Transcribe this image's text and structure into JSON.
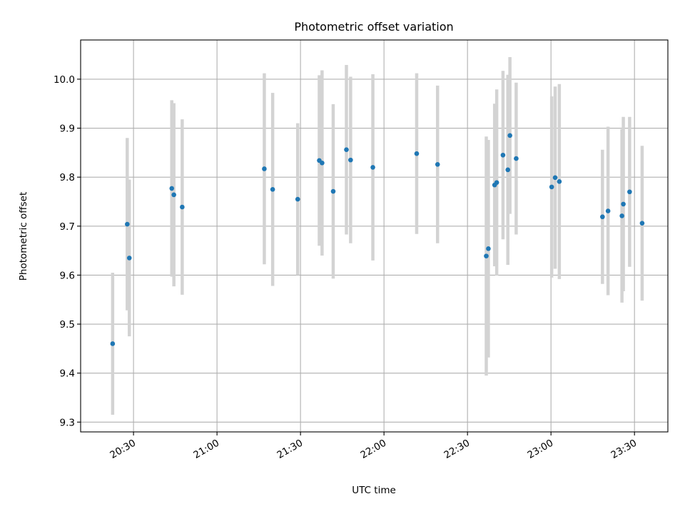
{
  "chart_data": {
    "type": "scatter",
    "title": "Photometric offset variation",
    "xlabel": "UTC time",
    "ylabel": "Photometric offset",
    "grid": true,
    "xlim": [
      "20:11",
      "23:42"
    ],
    "ylim": [
      9.28,
      10.08
    ],
    "x_ticks": [
      "20:30",
      "21:00",
      "21:30",
      "22:00",
      "22:30",
      "23:00",
      "23:30"
    ],
    "y_ticks": [
      "9.3",
      "9.4",
      "9.5",
      "9.6",
      "9.7",
      "9.8",
      "9.9",
      "10.0"
    ],
    "series": [
      {
        "marker_color": "#1f77b4",
        "errorbar_color": "#d3d3d3",
        "points": [
          {
            "x": "20:22:30",
            "y": 9.46,
            "ylo": 9.315,
            "yhi": 9.605
          },
          {
            "x": "20:27:45",
            "y": 9.704,
            "ylo": 9.528,
            "yhi": 9.88
          },
          {
            "x": "20:28:30",
            "y": 9.635,
            "ylo": 9.475,
            "yhi": 9.795
          },
          {
            "x": "20:43:45",
            "y": 9.777,
            "ylo": 9.597,
            "yhi": 9.957
          },
          {
            "x": "20:44:30",
            "y": 9.764,
            "ylo": 9.577,
            "yhi": 9.951
          },
          {
            "x": "20:47:30",
            "y": 9.739,
            "ylo": 9.56,
            "yhi": 9.918
          },
          {
            "x": "21:17:00",
            "y": 9.817,
            "ylo": 9.622,
            "yhi": 10.012
          },
          {
            "x": "21:20:00",
            "y": 9.775,
            "ylo": 9.578,
            "yhi": 9.972
          },
          {
            "x": "21:29:00",
            "y": 9.755,
            "ylo": 9.6,
            "yhi": 9.91
          },
          {
            "x": "21:36:45",
            "y": 9.834,
            "ylo": 9.66,
            "yhi": 10.008
          },
          {
            "x": "21:37:45",
            "y": 9.829,
            "ylo": 9.64,
            "yhi": 10.018
          },
          {
            "x": "21:41:45",
            "y": 9.771,
            "ylo": 9.593,
            "yhi": 9.949
          },
          {
            "x": "21:46:30",
            "y": 9.856,
            "ylo": 9.683,
            "yhi": 10.029
          },
          {
            "x": "21:48:00",
            "y": 9.835,
            "ylo": 9.665,
            "yhi": 10.005
          },
          {
            "x": "21:56:00",
            "y": 9.82,
            "ylo": 9.63,
            "yhi": 10.01
          },
          {
            "x": "22:11:45",
            "y": 9.848,
            "ylo": 9.684,
            "yhi": 10.012
          },
          {
            "x": "22:19:15",
            "y": 9.826,
            "ylo": 9.665,
            "yhi": 9.987
          },
          {
            "x": "22:36:45",
            "y": 9.639,
            "ylo": 9.395,
            "yhi": 9.883
          },
          {
            "x": "22:37:30",
            "y": 9.654,
            "ylo": 9.432,
            "yhi": 9.876
          },
          {
            "x": "22:39:45",
            "y": 9.784,
            "ylo": 9.618,
            "yhi": 9.95
          },
          {
            "x": "22:40:30",
            "y": 9.789,
            "ylo": 9.599,
            "yhi": 9.979
          },
          {
            "x": "22:42:45",
            "y": 9.845,
            "ylo": 9.673,
            "yhi": 10.017
          },
          {
            "x": "22:44:30",
            "y": 9.815,
            "ylo": 9.621,
            "yhi": 10.009
          },
          {
            "x": "22:45:15",
            "y": 9.885,
            "ylo": 9.725,
            "yhi": 10.045
          },
          {
            "x": "22:47:30",
            "y": 9.838,
            "ylo": 9.683,
            "yhi": 9.993
          },
          {
            "x": "23:00:15",
            "y": 9.78,
            "ylo": 9.595,
            "yhi": 9.965
          },
          {
            "x": "23:01:30",
            "y": 9.799,
            "ylo": 9.613,
            "yhi": 9.985
          },
          {
            "x": "23:03:00",
            "y": 9.791,
            "ylo": 9.592,
            "yhi": 9.99
          },
          {
            "x": "23:18:30",
            "y": 9.719,
            "ylo": 9.582,
            "yhi": 9.856
          },
          {
            "x": "23:20:30",
            "y": 9.731,
            "ylo": 9.559,
            "yhi": 9.903
          },
          {
            "x": "23:25:30",
            "y": 9.721,
            "ylo": 9.544,
            "yhi": 9.898
          },
          {
            "x": "23:26:00",
            "y": 9.745,
            "ylo": 9.567,
            "yhi": 9.923
          },
          {
            "x": "23:28:15",
            "y": 9.77,
            "ylo": 9.617,
            "yhi": 9.923
          },
          {
            "x": "23:32:45",
            "y": 9.706,
            "ylo": 9.548,
            "yhi": 9.864
          }
        ]
      }
    ]
  }
}
